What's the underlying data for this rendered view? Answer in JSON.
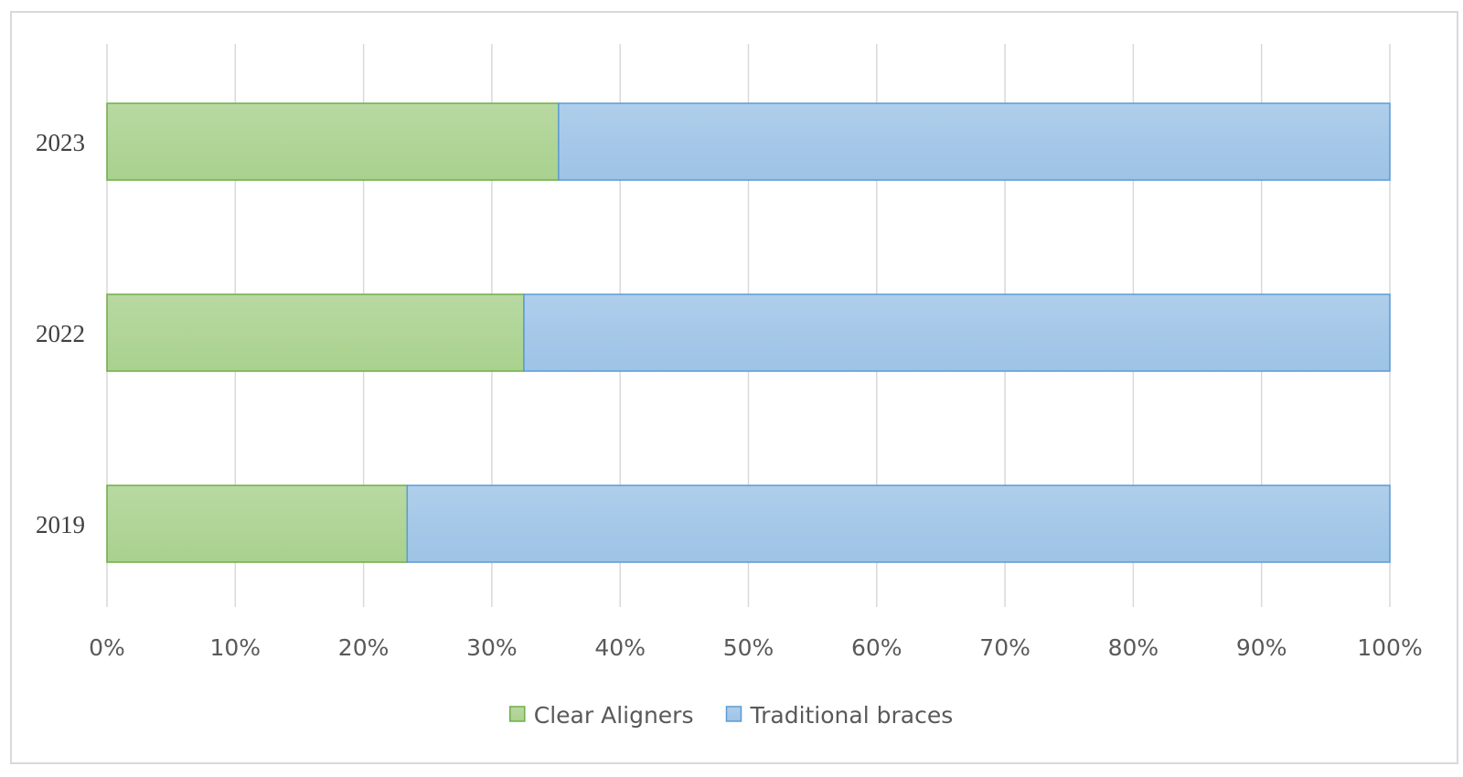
{
  "chart_data": {
    "type": "bar",
    "orientation": "horizontal",
    "stacked": "percent",
    "title": "",
    "xlabel": "",
    "ylabel": "",
    "categories": [
      "2023",
      "2022",
      "2019"
    ],
    "series": [
      {
        "name": "Clear Aligners",
        "values": [
          35.2,
          32.5,
          23.4
        ],
        "color": "#a9d18e",
        "stroke": "#70ad47"
      },
      {
        "name": "Traditional braces",
        "values": [
          64.8,
          67.5,
          76.6
        ],
        "color": "#9dc3e6",
        "stroke": "#5b9bd5"
      }
    ],
    "xlim": [
      0,
      100
    ],
    "x_ticks": [
      "0%",
      "10%",
      "20%",
      "30%",
      "40%",
      "50%",
      "60%",
      "70%",
      "80%",
      "90%",
      "100%"
    ],
    "grid": true,
    "legend_position": "bottom"
  }
}
